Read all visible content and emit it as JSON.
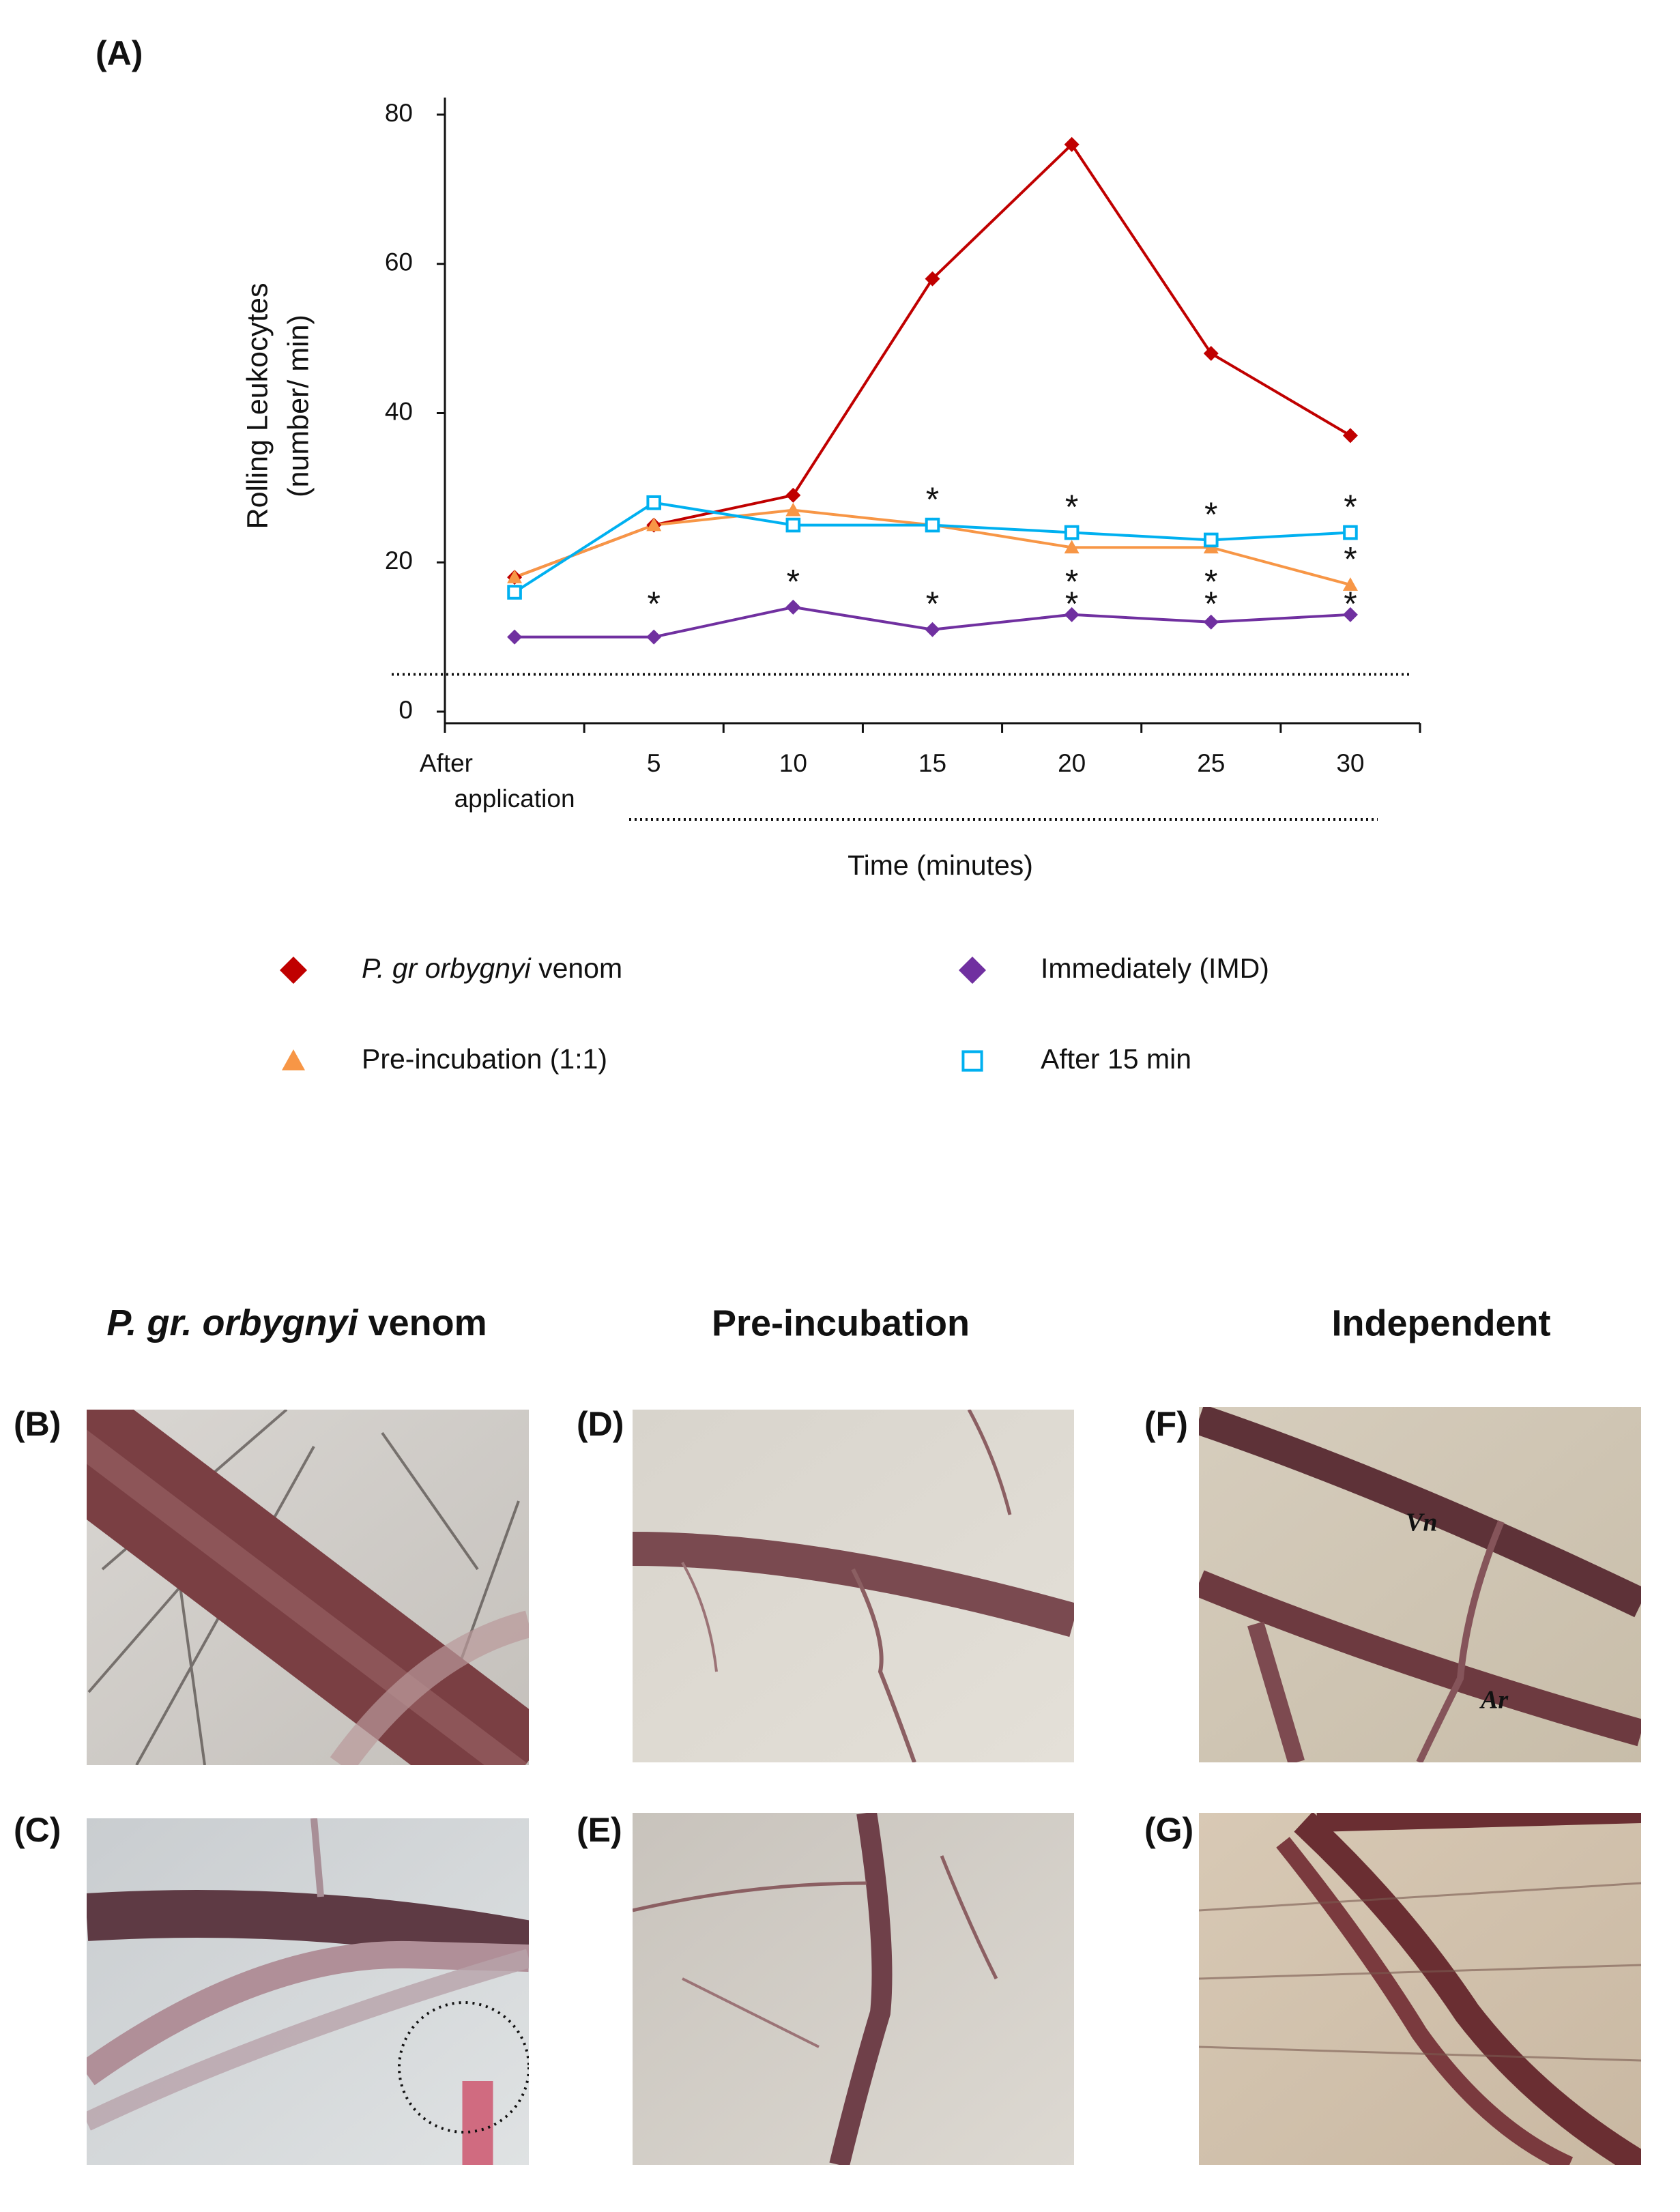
{
  "chart_data": {
    "type": "line",
    "panel_label": "(A)",
    "ylabel": [
      "Rolling Leukocytes",
      "(number/ min)"
    ],
    "xlabel": "Time (minutes)",
    "categories": [
      "After application",
      "5",
      "10",
      "15",
      "20",
      "25",
      "30"
    ],
    "series": [
      {
        "name": "P. gr orbygnyi venom",
        "color": "#c00000",
        "marker": "diamond",
        "values": [
          18,
          25,
          29,
          58,
          76,
          48,
          37
        ]
      },
      {
        "name": "Immediately (IMD)",
        "color": "#7030a0",
        "marker": "diamond",
        "values": [
          10,
          10,
          14,
          11,
          13,
          12,
          13
        ]
      },
      {
        "name": "Pre-incubation (1:1)",
        "color": "#f79646",
        "marker": "triangle",
        "values": [
          18,
          25,
          27,
          25,
          22,
          22,
          17
        ]
      },
      {
        "name": "After 15 min",
        "color": "#00b0f0",
        "marker": "open-square",
        "values": [
          16,
          28,
          25,
          25,
          24,
          23,
          24
        ]
      }
    ],
    "ylim": [
      0,
      80
    ],
    "yticks": [
      0,
      20,
      40,
      60,
      80
    ],
    "baseline": 5,
    "annotations": [
      {
        "text": "*",
        "category": 3,
        "value": 29
      },
      {
        "text": "*",
        "category": 4,
        "value": 28
      },
      {
        "text": "*",
        "category": 5,
        "value": 27
      },
      {
        "text": "*",
        "category": 6,
        "value": 28
      },
      {
        "text": "*",
        "category": 4,
        "value": 18
      },
      {
        "text": "*",
        "category": 5,
        "value": 18
      },
      {
        "text": "*",
        "category": 6,
        "value": 21
      },
      {
        "text": "*",
        "category": 1,
        "value": 15
      },
      {
        "text": "*",
        "category": 2,
        "value": 18
      },
      {
        "text": "*",
        "category": 3,
        "value": 15
      },
      {
        "text": "*",
        "category": 4,
        "value": 15
      },
      {
        "text": "*",
        "category": 5,
        "value": 15
      },
      {
        "text": "*",
        "category": 6,
        "value": 15
      }
    ]
  },
  "figure": {
    "columns": [
      "P. gr. orbygnyi venom",
      "Pre-incubation",
      "Independent"
    ],
    "panels": [
      "(B)",
      "(C)",
      "(D)",
      "(E)",
      "(F)",
      "(G)"
    ],
    "vessel_labels": [
      "Vn",
      "Ar"
    ]
  }
}
